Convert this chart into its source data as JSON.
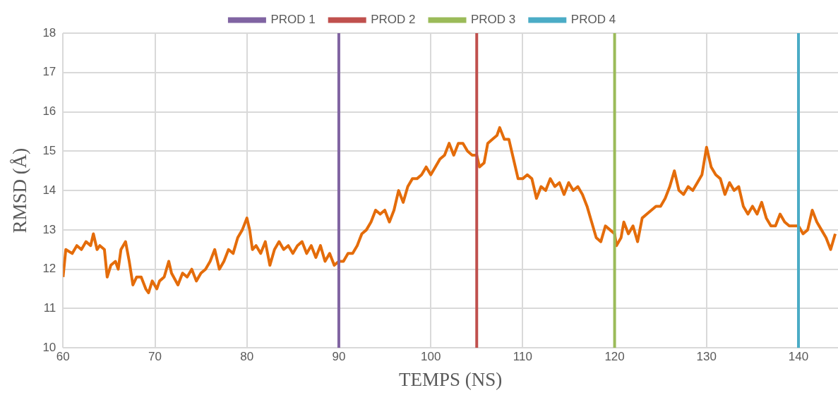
{
  "chart_data": {
    "type": "line",
    "xlabel": "TEMPS (NS)",
    "ylabel": "RMSD (Å)",
    "x": [
      60,
      60.3,
      61,
      61.5,
      62,
      62.5,
      63,
      63.3,
      63.7,
      64,
      64.5,
      64.8,
      65.2,
      65.7,
      66,
      66.3,
      66.8,
      67.2,
      67.6,
      68,
      68.5,
      69,
      69.3,
      69.7,
      70.2,
      70.5,
      71,
      71.5,
      71.8,
      72.5,
      73,
      73.5,
      74,
      74.5,
      75,
      75.5,
      76,
      76.5,
      77,
      77.5,
      78,
      78.5,
      79,
      79.5,
      80,
      80.3,
      80.6,
      81,
      81.5,
      82,
      82.5,
      83,
      83.5,
      84,
      84.5,
      85,
      85.5,
      86,
      86.5,
      87,
      87.5,
      88,
      88.5,
      89,
      89.5,
      90,
      90.5,
      91,
      91.5,
      92,
      92.5,
      93,
      93.5,
      94,
      94.5,
      95,
      95.5,
      96,
      96.5,
      97,
      97.5,
      98,
      98.5,
      99,
      99.5,
      100,
      100.5,
      101,
      101.5,
      102,
      102.5,
      103,
      103.5,
      104,
      104.5,
      105,
      105.3,
      105.8,
      106.2,
      106.7,
      107.2,
      107.5,
      108,
      108.5,
      109,
      109.5,
      110,
      110.5,
      111,
      111.5,
      112,
      112.5,
      113,
      113.5,
      114,
      114.5,
      115,
      115.5,
      116,
      116.5,
      117,
      117.5,
      118,
      118.5,
      119,
      119.5,
      120,
      120.2,
      120.7,
      121,
      121.5,
      122,
      122.5,
      123,
      123.5,
      124,
      124.5,
      125,
      125.5,
      126,
      126.5,
      127,
      127.5,
      128,
      128.5,
      129,
      129.5,
      130,
      130.5,
      131,
      131.5,
      132,
      132.5,
      133,
      133.5,
      134,
      134.5,
      135,
      135.5,
      136,
      136.5,
      137,
      137.5,
      138,
      138.5,
      139,
      140,
      140.5,
      141,
      141.5,
      142,
      142.5,
      143,
      143.5,
      144
    ],
    "series": [
      {
        "color": "#e46c0a",
        "values": [
          11.8,
          12.5,
          12.4,
          12.6,
          12.5,
          12.7,
          12.6,
          12.9,
          12.5,
          12.6,
          12.5,
          11.8,
          12.1,
          12.2,
          12.0,
          12.5,
          12.7,
          12.2,
          11.6,
          11.8,
          11.8,
          11.5,
          11.4,
          11.7,
          11.5,
          11.7,
          11.8,
          12.2,
          11.9,
          11.6,
          11.9,
          11.8,
          12.0,
          11.7,
          11.9,
          12.0,
          12.2,
          12.5,
          12.0,
          12.2,
          12.5,
          12.4,
          12.8,
          13.0,
          13.3,
          13.0,
          12.5,
          12.6,
          12.4,
          12.7,
          12.1,
          12.5,
          12.7,
          12.5,
          12.6,
          12.4,
          12.6,
          12.7,
          12.4,
          12.6,
          12.3,
          12.6,
          12.2,
          12.4,
          12.1,
          12.2,
          12.2,
          12.4,
          12.4,
          12.6,
          12.9,
          13.0,
          13.2,
          13.5,
          13.4,
          13.5,
          13.2,
          13.5,
          14.0,
          13.7,
          14.1,
          14.3,
          14.3,
          14.4,
          14.6,
          14.4,
          14.6,
          14.8,
          14.9,
          15.2,
          14.9,
          15.2,
          15.2,
          15.0,
          14.9,
          14.9,
          14.6,
          14.7,
          15.2,
          15.3,
          15.4,
          15.6,
          15.3,
          15.3,
          14.8,
          14.3,
          14.3,
          14.4,
          14.3,
          13.8,
          14.1,
          14.0,
          14.3,
          14.1,
          14.2,
          13.9,
          14.2,
          14.0,
          14.1,
          13.9,
          13.6,
          13.2,
          12.8,
          12.7,
          13.1,
          13.0,
          12.9,
          12.6,
          12.8,
          13.2,
          12.9,
          13.1,
          12.7,
          13.3,
          13.4,
          13.5,
          13.6,
          13.6,
          13.8,
          14.1,
          14.5,
          14.0,
          13.9,
          14.1,
          14.0,
          14.2,
          14.4,
          15.1,
          14.6,
          14.4,
          14.3,
          13.9,
          14.2,
          14.0,
          14.1,
          13.6,
          13.4,
          13.6,
          13.4,
          13.7,
          13.3,
          13.1,
          13.1,
          13.4,
          13.2,
          13.1,
          13.1,
          12.9,
          13.0,
          13.5,
          13.2,
          13.0,
          12.8,
          12.5,
          12.9
        ]
      }
    ],
    "xlim": [
      60,
      144.3
    ],
    "xticks": [
      60,
      70,
      80,
      90,
      100,
      110,
      120,
      130,
      140
    ],
    "ylim": [
      10,
      18
    ],
    "yticks": [
      10,
      11,
      12,
      13,
      14,
      15,
      16,
      17,
      18
    ],
    "ref_lines": [
      {
        "axis": "x",
        "value": 90,
        "label": "PROD 1",
        "color": "#8064a2"
      },
      {
        "axis": "x",
        "value": 105,
        "label": "PROD 2",
        "color": "#c0504d"
      },
      {
        "axis": "x",
        "value": 120,
        "label": "PROD 3",
        "color": "#9bbb59"
      },
      {
        "axis": "x",
        "value": 140,
        "label": "PROD 4",
        "color": "#4bacc6"
      }
    ],
    "grid": true,
    "legend": "top",
    "marker": "none",
    "line_style": "solid"
  }
}
